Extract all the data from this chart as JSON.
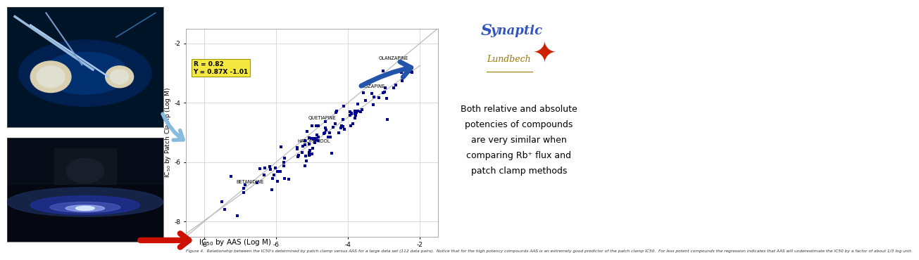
{
  "bg_color": "#ffffff",
  "scatter_color": "#00008B",
  "scatter_size": 6,
  "ylabel": "IC$_{50}$ by Patch Clamp (Log M)",
  "xlim": [
    -8.5,
    -1.5
  ],
  "ylim": [
    -8.5,
    -1.5
  ],
  "xticks": [
    -8,
    -6,
    -4,
    -2
  ],
  "yticks": [
    -8,
    -6,
    -4,
    -2
  ],
  "annotation_box_text": "R = 0.82\nY = 0.87X -1.01",
  "label_olanzapine": "OLANZAPINE",
  "label_clozapine": "CLOZAPINE",
  "label_haloperidol": "HALOPERIDOL",
  "label_betanidine": "BETANIDINE",
  "label_quetiapine": "QUETIAPINE",
  "right_text_lines": [
    "Both relative and absolute",
    "potencies of compounds",
    "are very similar when",
    "comparing Rb⁺ flux and",
    "patch clamp methods"
  ],
  "caption_line1": "Figure 4.  Relationship between the IC",
  "caption_line2": "50",
  "caption_full": "Figure 4.  Relationship between the IC50's determined by patch clamp versus AAS for a large data set (112 data pairs).  Notice that for the high potency compounds AAS is an extremely good predictor of the patch clamp IC50.  For less potent compounds the regression indicates that AAS will underestimate the IC50 by a factor of about 1/3 log unit.",
  "grid_color": "#cccccc",
  "xlabel_arrow": "IC$_{50}$ by AAS (Log M)"
}
